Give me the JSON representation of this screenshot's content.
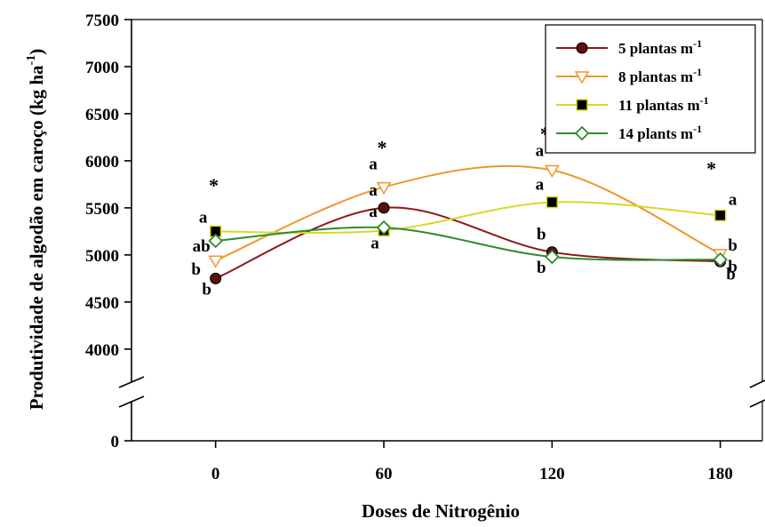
{
  "chart_data": {
    "type": "line",
    "xlabel": "Doses de Nitrogênio",
    "ylabel_main": "Produtividade de algodão em caroço (kg ha",
    "ylabel_sup": "-1",
    "ylabel_close": ")",
    "x": [
      0,
      60,
      120,
      180
    ],
    "x_tick_labels": [
      "0",
      "60",
      "120",
      "180"
    ],
    "xlim": [
      -30,
      195
    ],
    "y_tick_labels": [
      "0",
      "4000",
      "4500",
      "5000",
      "5500",
      "6000",
      "6500",
      "7000",
      "7500"
    ],
    "ylim_upper_segment": [
      3800,
      7500
    ],
    "axis_break": true,
    "legend_position": "top-right",
    "series": [
      {
        "name": "5 plantas m",
        "name_sup": "-1",
        "color": "#8B1A1A",
        "marker": "circle",
        "marker_fill": "#5a0f0f",
        "values": [
          4750,
          5500,
          5030,
          4930
        ],
        "letters": [
          "b",
          "a",
          "b",
          "b"
        ]
      },
      {
        "name": "8 plantas m",
        "name_sup": "-1",
        "color": "#F0962C",
        "marker": "triangle-down",
        "marker_fill": "#ffffff",
        "values": [
          4940,
          5720,
          5900,
          5010
        ],
        "letters": [
          "b",
          "a",
          "a",
          "b"
        ]
      },
      {
        "name": "11 plantas m",
        "name_sup": "-1",
        "color": "#D8D82A",
        "marker": "square",
        "marker_fill": "#000000",
        "values": [
          5250,
          5260,
          5560,
          5420
        ],
        "letters": [
          "a",
          "a",
          "a",
          "a"
        ]
      },
      {
        "name": "14 plants m",
        "name_sup": "-1",
        "color": "#2E8B2E",
        "marker": "diamond",
        "marker_fill": "#ffffff",
        "values": [
          5150,
          5290,
          4980,
          4950
        ],
        "letters": [
          "ab",
          "a",
          "b",
          "b"
        ]
      }
    ],
    "significance_marks": [
      "*",
      "*",
      "*",
      "*"
    ]
  }
}
